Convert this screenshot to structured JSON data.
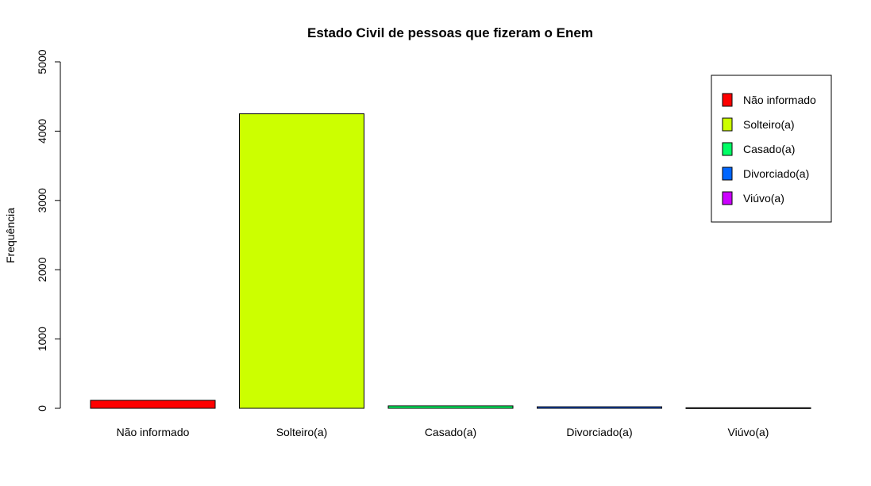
{
  "chart_data": {
    "type": "bar",
    "title": "Estado Civil de pessoas que fizeram o Enem",
    "xlabel": "",
    "ylabel": "Frequência",
    "categories": [
      "Não informado",
      "Solteiro(a)",
      "Casado(a)",
      "Divorciado(a)",
      "Viúvo(a)"
    ],
    "values": [
      115,
      4250,
      35,
      22,
      8
    ],
    "colors": [
      "#FF0000",
      "#CCFF00",
      "#00FF66",
      "#0066FF",
      "#CC00FF"
    ],
    "ylim": [
      0,
      5000
    ],
    "yticks": [
      0,
      1000,
      2000,
      3000,
      4000,
      5000
    ],
    "grid": false,
    "legend": {
      "position": "top-right",
      "entries": [
        "Não informado",
        "Solteiro(a)",
        "Casado(a)",
        "Divorciado(a)",
        "Viúvo(a)"
      ]
    }
  }
}
